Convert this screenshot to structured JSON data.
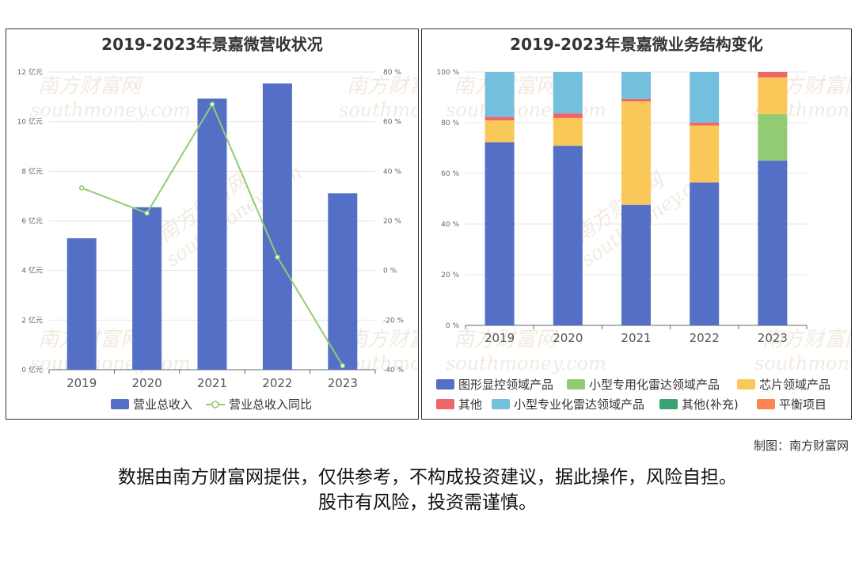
{
  "credit": "制图：南方财富网",
  "disclaimer": {
    "line1": "数据由南方财富网提供，仅供参考，不构成投资建议，据此操作，风险自担。",
    "line2": "股市有风险，投资需谨慎。"
  },
  "watermark": {
    "text_cn": "南方财富网",
    "text_en": "southmoney.com"
  },
  "colors": {
    "revenue_bar": "#5470c6",
    "growth_line": "#91cc75",
    "graphics": "#5470c6",
    "radar_dedicated": "#91cc75",
    "chip": "#fac858",
    "other": "#ee6666",
    "radar_professional": "#73c0de",
    "other_supplement": "#3ba272",
    "balance": "#fc8452"
  },
  "chart_data": [
    {
      "type": "bar",
      "title": "2019-2023年景嘉微营收状况",
      "categories": [
        "2019",
        "2020",
        "2021",
        "2022",
        "2023"
      ],
      "series": [
        {
          "name": "营业总收入",
          "type": "bar",
          "axis": "left",
          "values": [
            5.3,
            6.55,
            10.93,
            11.54,
            7.11
          ]
        },
        {
          "name": "营业总收入同比",
          "type": "line",
          "axis": "right",
          "values": [
            33.3,
            23.1,
            67.0,
            5.4,
            -38.4
          ]
        }
      ],
      "yaxis_left": {
        "ylim": [
          0,
          12
        ],
        "ticks": [
          0,
          2,
          4,
          6,
          8,
          10,
          12
        ],
        "unit": "亿元"
      },
      "yaxis_right": {
        "ylim": [
          -40,
          80
        ],
        "ticks": [
          -40,
          -20,
          0,
          20,
          40,
          60,
          80
        ],
        "unit": "%"
      },
      "legend": "bottom",
      "grid": true
    },
    {
      "type": "bar",
      "stacked": true,
      "title": "2019-2023年景嘉微业务结构变化",
      "categories": [
        "2019",
        "2020",
        "2021",
        "2022",
        "2023"
      ],
      "series": [
        {
          "name": "图形显控领域产品",
          "values": [
            72.3,
            70.9,
            47.6,
            56.4,
            65.1
          ]
        },
        {
          "name": "小型专用化雷达领域产品",
          "values": [
            0,
            0,
            0,
            0,
            18.3
          ]
        },
        {
          "name": "芯片领域产品",
          "values": [
            8.6,
            11.0,
            40.8,
            22.5,
            14.5
          ]
        },
        {
          "name": "其他",
          "values": [
            1.4,
            1.8,
            1.0,
            1.1,
            2.1
          ]
        },
        {
          "name": "小型专业化雷达领域产品",
          "values": [
            17.7,
            16.3,
            10.6,
            20.0,
            0
          ]
        },
        {
          "name": "其他(补充)",
          "values": [
            0,
            0,
            0,
            0,
            0
          ]
        },
        {
          "name": "平衡项目",
          "values": [
            0,
            0,
            0,
            0,
            0
          ]
        }
      ],
      "yaxis": {
        "ylim": [
          0,
          100
        ],
        "ticks": [
          0,
          20,
          40,
          60,
          80,
          100
        ],
        "unit": "%"
      },
      "legend": "bottom",
      "grid": true
    }
  ]
}
